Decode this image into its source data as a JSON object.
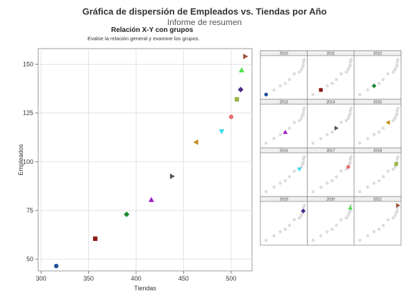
{
  "header": {
    "title": "Gráfica de dispersión de Empleados vs. Tiendas por Año",
    "subtitle": "Informe de resumen",
    "panel_heading": "Relación X-Y con grupos",
    "panel_subheading": "Evalúe la relación general y examine los grupos."
  },
  "chart_data": {
    "type": "scatter",
    "xlabel": "Tiendas",
    "ylabel": "Empleados",
    "xlim": [
      297,
      522
    ],
    "ylim": [
      44,
      158
    ],
    "xticks": [
      300,
      350,
      400,
      450,
      500
    ],
    "yticks": [
      50,
      75,
      100,
      125,
      150
    ],
    "grid": true,
    "points": [
      {
        "year": "2010",
        "x": 316,
        "y": 46.5,
        "color": "#1f4e9c",
        "marker": "circle"
      },
      {
        "year": "2011",
        "x": 357,
        "y": 60.5,
        "color": "#8b1a1a",
        "marker": "square"
      },
      {
        "year": "2012",
        "x": 390,
        "y": 73,
        "color": "#1a8a2e",
        "marker": "diamond"
      },
      {
        "year": "2013",
        "x": 416,
        "y": 80.5,
        "color": "#9b1fc8",
        "marker": "triangle-up"
      },
      {
        "year": "2014",
        "x": 438,
        "y": 92.5,
        "color": "#555555",
        "marker": "triangle-right"
      },
      {
        "year": "2015",
        "x": 463,
        "y": 110,
        "color": "#c98a1a",
        "marker": "triangle-left"
      },
      {
        "year": "2016",
        "x": 490,
        "y": 115.5,
        "color": "#3fd8ec",
        "marker": "triangle-down"
      },
      {
        "year": "2017",
        "x": 500,
        "y": 123,
        "color": "#e86f6f",
        "marker": "circle"
      },
      {
        "year": "2018",
        "x": 506,
        "y": 132,
        "color": "#9bb54a",
        "marker": "square"
      },
      {
        "year": "2019",
        "x": 510,
        "y": 137,
        "color": "#4b2a8a",
        "marker": "diamond"
      },
      {
        "year": "2020",
        "x": 511,
        "y": 147,
        "color": "#4fe04f",
        "marker": "triangle-up"
      },
      {
        "year": "2021",
        "x": 515,
        "y": 154,
        "color": "#a0523a",
        "marker": "triangle-right"
      }
    ],
    "panels": [
      "2010",
      "2011",
      "2012",
      "2013",
      "2014",
      "2015",
      "2016",
      "2017",
      "2018",
      "2019",
      "2020",
      "2021"
    ]
  }
}
